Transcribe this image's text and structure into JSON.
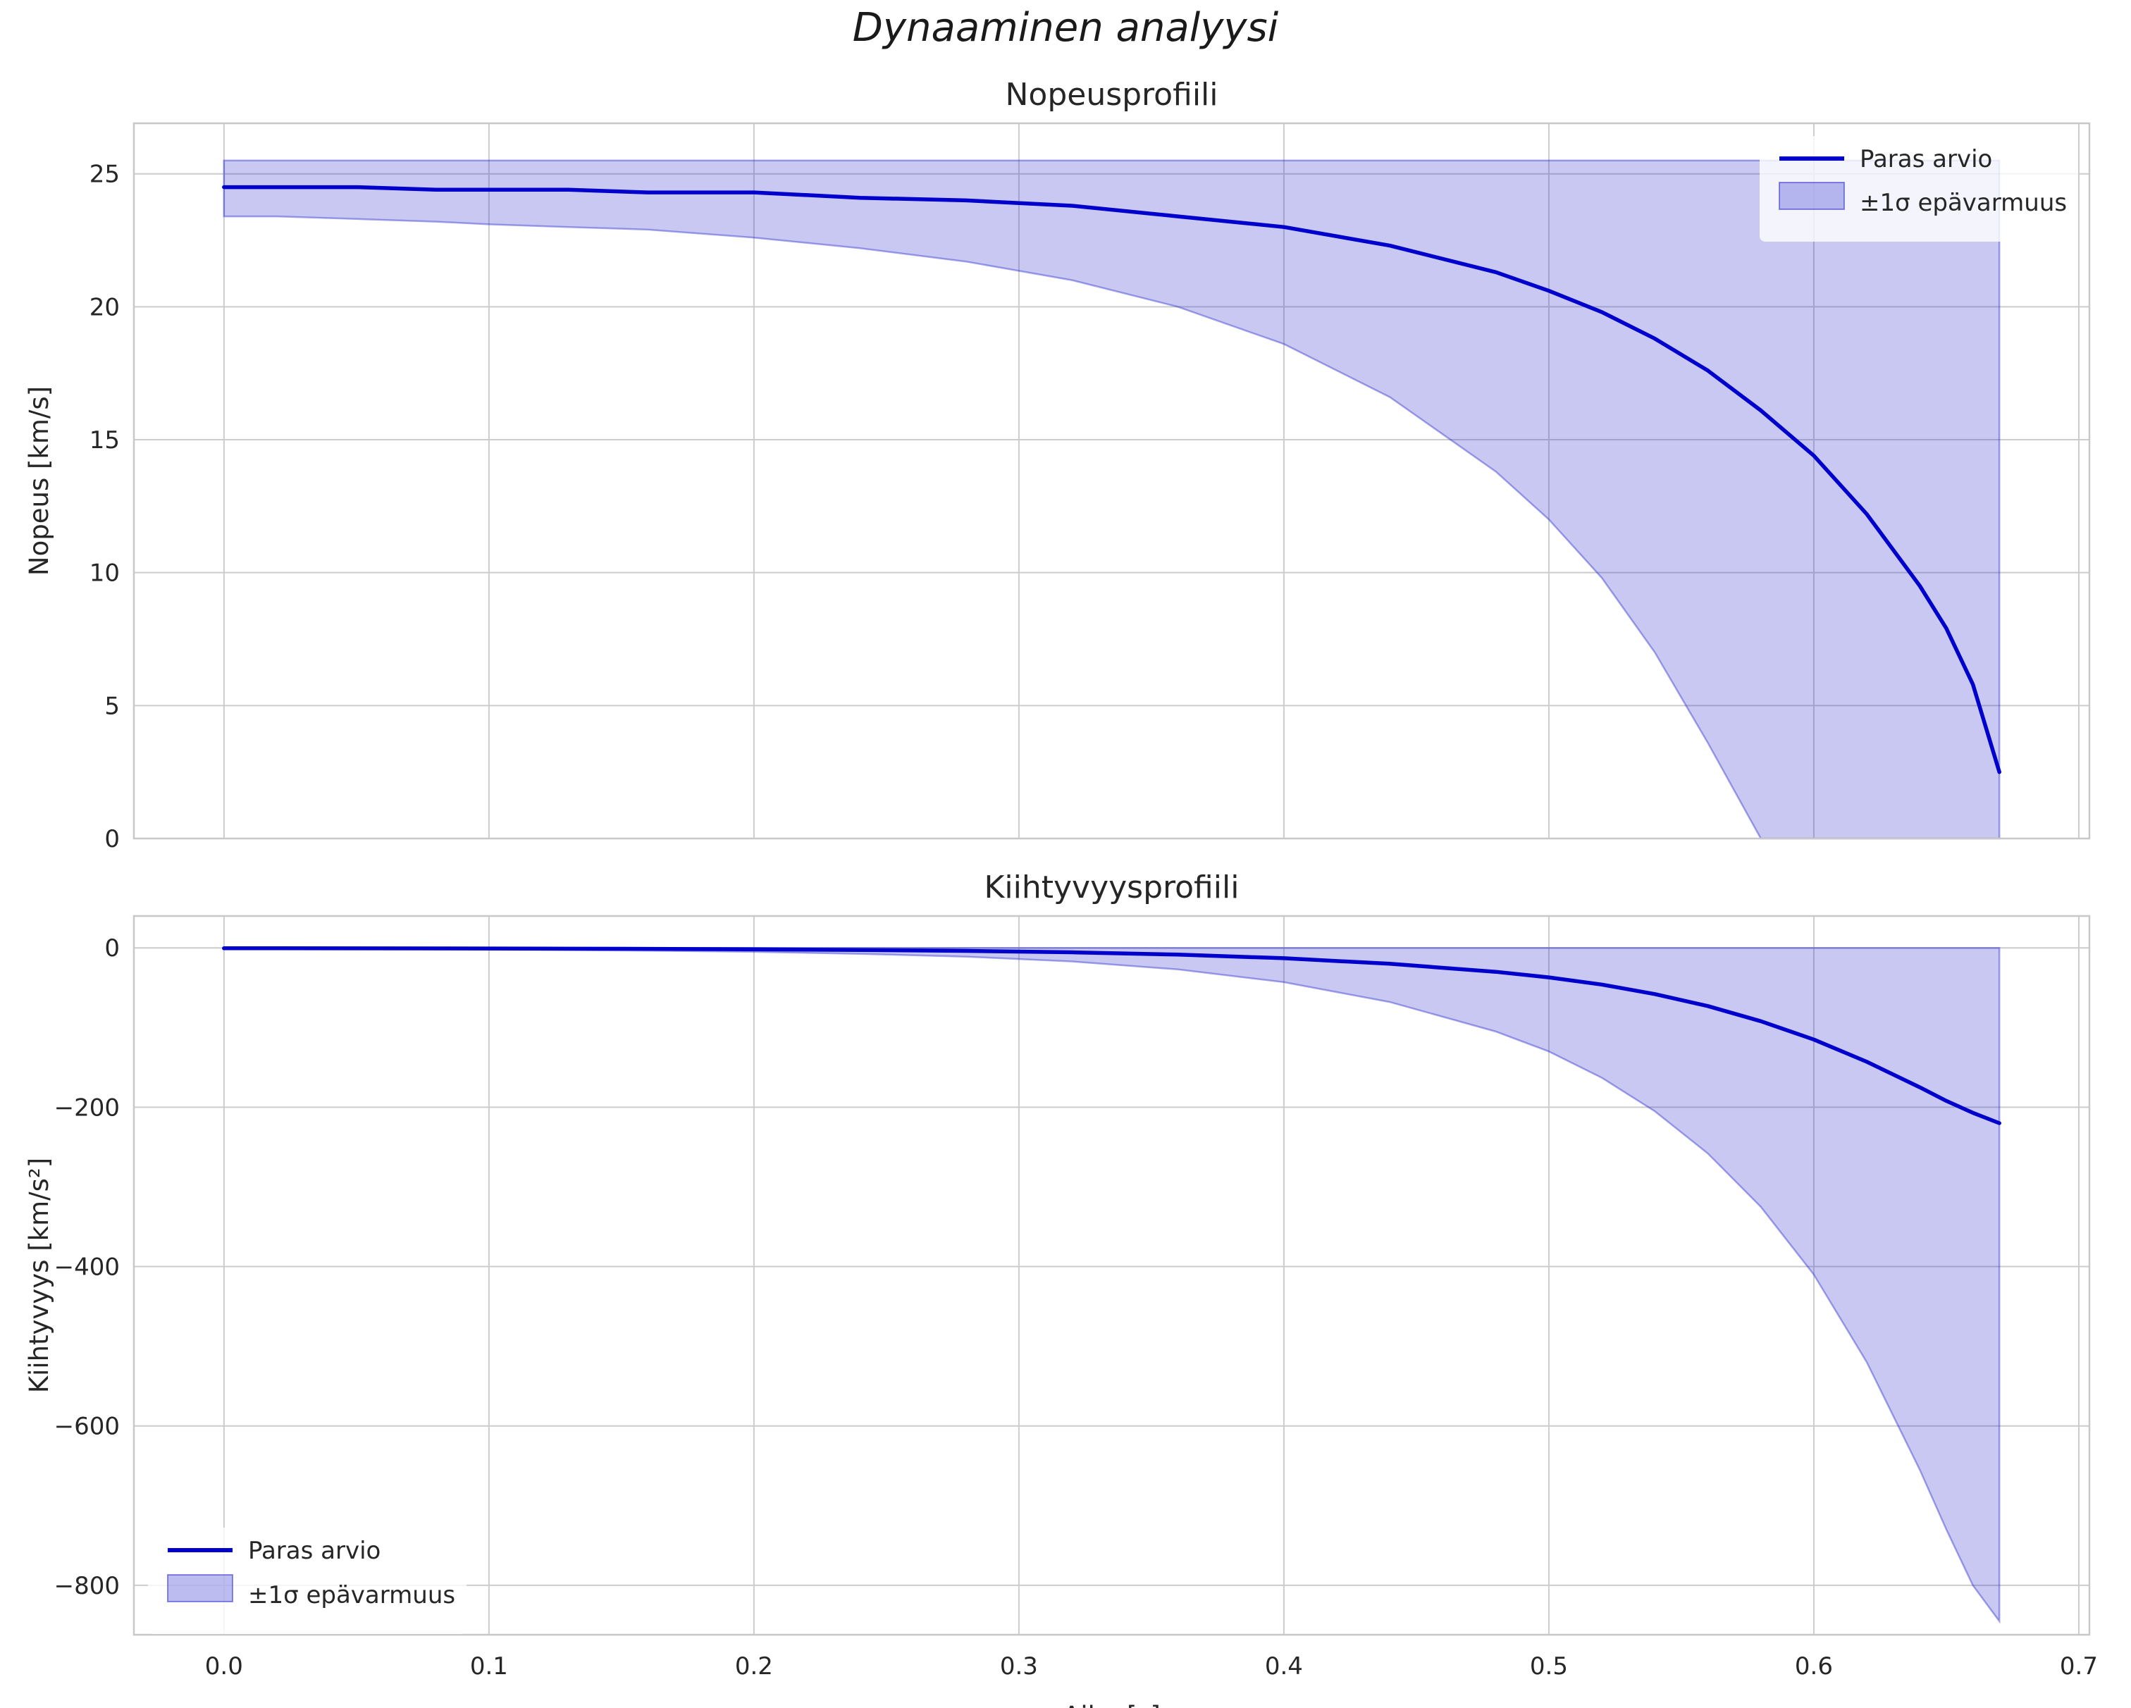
{
  "figure": {
    "suptitle": "Dynaaminen analyysi",
    "colors": {
      "line": "#0000cd",
      "band": "#2222cc",
      "grid": "#cccccc",
      "spine": "#c8c8c8",
      "text": "#262626"
    }
  },
  "chart_data": [
    {
      "type": "line",
      "title": "Nopeusprofiili",
      "xlabel": "",
      "ylabel": "Nopeus [km/s]",
      "xlim": [
        -0.034,
        0.704
      ],
      "ylim": [
        0,
        26.9
      ],
      "grid": true,
      "xticks": [
        0.0,
        0.1,
        0.2,
        0.3,
        0.4,
        0.5,
        0.6,
        0.7
      ],
      "xticklabels": [],
      "yticks": [
        0,
        5,
        10,
        15,
        20,
        25
      ],
      "yticklabels": [
        "0",
        "5",
        "10",
        "15",
        "20",
        "25"
      ],
      "legend": {
        "loc": "upper-right",
        "entries": [
          {
            "type": "line",
            "label": "Paras arvio"
          },
          {
            "type": "patch",
            "label": "±1σ epävarmuus"
          }
        ]
      },
      "x": [
        0.0,
        0.02,
        0.05,
        0.08,
        0.1,
        0.13,
        0.16,
        0.2,
        0.24,
        0.28,
        0.32,
        0.36,
        0.4,
        0.44,
        0.48,
        0.5,
        0.52,
        0.54,
        0.56,
        0.58,
        0.6,
        0.62,
        0.64,
        0.65,
        0.66,
        0.67
      ],
      "series": [
        {
          "name": "Paras arvio",
          "values": [
            24.5,
            24.5,
            24.5,
            24.4,
            24.4,
            24.4,
            24.3,
            24.3,
            24.1,
            24.0,
            23.8,
            23.4,
            23.0,
            22.3,
            21.3,
            20.6,
            19.8,
            18.8,
            17.6,
            16.1,
            14.4,
            12.2,
            9.5,
            7.9,
            5.8,
            2.5
          ]
        }
      ],
      "band": {
        "name": "±1σ epävarmuus",
        "upper": [
          25.5,
          25.5,
          25.5,
          25.5,
          25.5,
          25.5,
          25.5,
          25.5,
          25.5,
          25.5,
          25.5,
          25.5,
          25.5,
          25.5,
          25.5,
          25.5,
          25.5,
          25.5,
          25.5,
          25.5,
          25.5,
          25.5,
          25.5,
          25.5,
          25.5,
          25.5
        ],
        "lower": [
          23.4,
          23.4,
          23.3,
          23.2,
          23.1,
          23.0,
          22.9,
          22.6,
          22.2,
          21.7,
          21.0,
          20.0,
          18.6,
          16.6,
          13.8,
          12.0,
          9.8,
          7.0,
          3.6,
          0,
          0,
          0,
          0,
          0,
          0,
          0
        ]
      }
    },
    {
      "type": "line",
      "title": "Kiihtyvyysprofiili",
      "xlabel": "Aika [s]",
      "ylabel": "Kiihtyvyys [km/s²]",
      "xlim": [
        -0.034,
        0.704
      ],
      "ylim": [
        -862,
        40
      ],
      "grid": true,
      "xticks": [
        0.0,
        0.1,
        0.2,
        0.3,
        0.4,
        0.5,
        0.6,
        0.7
      ],
      "xticklabels": [
        "0.0",
        "0.1",
        "0.2",
        "0.3",
        "0.4",
        "0.5",
        "0.6",
        "0.7"
      ],
      "yticks": [
        0,
        -200,
        -400,
        -600,
        -800
      ],
      "yticklabels": [
        "0",
        "−200",
        "−400",
        "−600",
        "−800"
      ],
      "legend": {
        "loc": "lower-left",
        "entries": [
          {
            "type": "line",
            "label": "Paras arvio"
          },
          {
            "type": "patch",
            "label": "±1σ epävarmuus"
          }
        ]
      },
      "x": [
        0.0,
        0.02,
        0.05,
        0.08,
        0.1,
        0.13,
        0.16,
        0.2,
        0.24,
        0.28,
        0.32,
        0.36,
        0.4,
        0.44,
        0.48,
        0.5,
        0.52,
        0.54,
        0.56,
        0.58,
        0.6,
        0.62,
        0.64,
        0.65,
        0.66,
        0.67
      ],
      "series": [
        {
          "name": "Paras arvio",
          "values": [
            -0.5,
            -0.5,
            -0.6,
            -0.7,
            -0.8,
            -1.0,
            -1.2,
            -1.8,
            -2.6,
            -3.8,
            -5.5,
            -8.5,
            -13,
            -20,
            -30,
            -37,
            -46,
            -58,
            -73,
            -92,
            -115,
            -143,
            -175,
            -192,
            -207,
            -220
          ]
        }
      ],
      "band": {
        "name": "±1σ epävarmuus",
        "upper": [
          0,
          0,
          0,
          0,
          0,
          0,
          0,
          0,
          0,
          0,
          0,
          0,
          0,
          0,
          0,
          0,
          0,
          0,
          0,
          0,
          0,
          0,
          0,
          0,
          0,
          0
        ],
        "lower": [
          -1.2,
          -1.3,
          -1.6,
          -1.9,
          -2.2,
          -2.8,
          -3.5,
          -5,
          -7.5,
          -11,
          -17,
          -27,
          -43,
          -68,
          -105,
          -130,
          -163,
          -205,
          -258,
          -325,
          -410,
          -520,
          -655,
          -730,
          -800,
          -845
        ]
      }
    }
  ]
}
